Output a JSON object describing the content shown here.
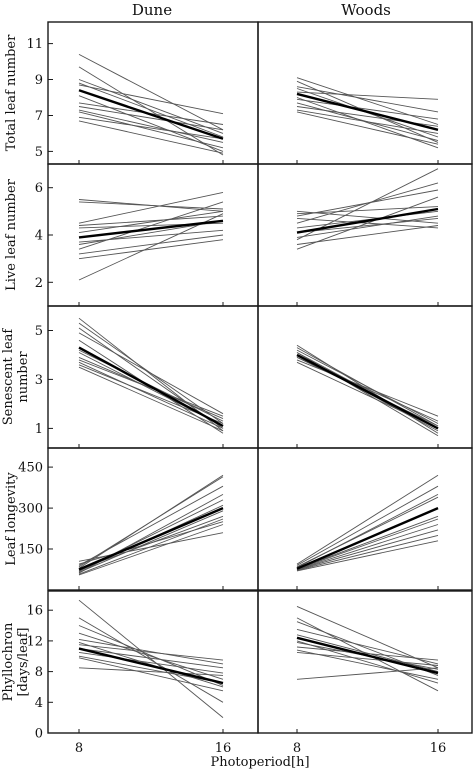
{
  "chart_data": {
    "type": "line",
    "x_title": "Photoperiod[h]",
    "x_ticks": [
      "8",
      "16"
    ],
    "columns": [
      "Dune",
      "Woods"
    ],
    "rows": [
      {
        "ylabel": [
          "Total leaf number"
        ],
        "ylim": [
          4.3,
          12.2
        ],
        "yticks": [
          5,
          7,
          9,
          11
        ],
        "panels": [
          {
            "mean": [
              8.4,
              5.7
            ],
            "individuals": [
              [
                10.4,
                6.2
              ],
              [
                9.7,
                4.8
              ],
              [
                9.0,
                6.0
              ],
              [
                8.8,
                5.8
              ],
              [
                8.7,
                7.1
              ],
              [
                8.1,
                5.0
              ],
              [
                7.7,
                6.5
              ],
              [
                7.5,
                6.2
              ],
              [
                7.3,
                5.5
              ],
              [
                7.2,
                5.2
              ],
              [
                6.7,
                4.9
              ],
              [
                6.9,
                5.7
              ]
            ]
          },
          {
            "mean": [
              8.2,
              6.2
            ],
            "individuals": [
              [
                9.1,
                6.5
              ],
              [
                8.9,
                5.5
              ],
              [
                8.5,
                5.8
              ],
              [
                8.3,
                7.9
              ],
              [
                8.0,
                5.2
              ],
              [
                7.9,
                6.8
              ],
              [
                7.7,
                5.6
              ],
              [
                7.5,
                6.4
              ],
              [
                7.3,
                6.0
              ],
              [
                7.2,
                5.4
              ],
              [
                8.6,
                7.2
              ]
            ]
          }
        ]
      },
      {
        "ylabel": [
          "Live leaf number"
        ],
        "ylim": [
          1.0,
          7.0
        ],
        "yticks": [
          2,
          4,
          6
        ],
        "panels": [
          {
            "mean": [
              3.9,
              4.6
            ],
            "individuals": [
              [
                5.5,
                5.0
              ],
              [
                5.4,
                5.1
              ],
              [
                4.5,
                5.8
              ],
              [
                4.4,
                4.8
              ],
              [
                4.3,
                4.5
              ],
              [
                4.1,
                5.0
              ],
              [
                3.7,
                4.2
              ],
              [
                3.6,
                4.6
              ],
              [
                3.4,
                5.4
              ],
              [
                3.2,
                4.0
              ],
              [
                3.0,
                3.8
              ],
              [
                2.1,
                4.9
              ]
            ]
          },
          {
            "mean": [
              4.1,
              5.1
            ],
            "individuals": [
              [
                5.0,
                4.5
              ],
              [
                4.9,
                5.2
              ],
              [
                4.7,
                4.3
              ],
              [
                4.5,
                6.2
              ],
              [
                4.3,
                5.0
              ],
              [
                4.1,
                4.7
              ],
              [
                3.9,
                4.8
              ],
              [
                3.8,
                6.8
              ],
              [
                3.6,
                4.4
              ],
              [
                3.4,
                5.6
              ],
              [
                4.8,
                5.9
              ]
            ]
          }
        ]
      },
      {
        "ylabel": [
          "Senescent leaf",
          "number"
        ],
        "ylim": [
          0.2,
          6.0
        ],
        "yticks": [
          1,
          3,
          5
        ],
        "panels": [
          {
            "mean": [
              4.3,
              1.1
            ],
            "individuals": [
              [
                5.5,
                0.9
              ],
              [
                5.3,
                1.2
              ],
              [
                5.1,
                1.0
              ],
              [
                4.9,
                1.6
              ],
              [
                4.6,
                0.8
              ],
              [
                4.2,
                1.3
              ],
              [
                4.1,
                1.1
              ],
              [
                3.8,
                1.5
              ],
              [
                3.7,
                1.0
              ],
              [
                3.5,
                0.9
              ],
              [
                3.9,
                1.4
              ],
              [
                3.6,
                1.2
              ]
            ]
          },
          {
            "mean": [
              4.0,
              1.0
            ],
            "individuals": [
              [
                4.4,
                0.8
              ],
              [
                4.3,
                1.1
              ],
              [
                4.2,
                1.2
              ],
              [
                4.1,
                1.0
              ],
              [
                4.0,
                0.9
              ],
              [
                3.9,
                1.3
              ],
              [
                3.8,
                1.5
              ],
              [
                4.1,
                0.7
              ],
              [
                3.9,
                1.1
              ],
              [
                3.7,
                1.0
              ]
            ]
          }
        ]
      },
      {
        "ylabel": [
          "Leaf longevity"
        ],
        "ylim": [
          0,
          520
        ],
        "yticks": [
          150,
          300,
          450
        ],
        "panels": [
          {
            "mean": [
              75,
              300
            ],
            "individuals": [
              [
                105,
                210
              ],
              [
                95,
                250
              ],
              [
                90,
                380
              ],
              [
                85,
                415
              ],
              [
                80,
                420
              ],
              [
                75,
                270
              ],
              [
                70,
                330
              ],
              [
                65,
                290
              ],
              [
                62,
                350
              ],
              [
                58,
                260
              ],
              [
                55,
                240
              ],
              [
                68,
                310
              ]
            ]
          },
          {
            "mean": [
              78,
              300
            ],
            "individuals": [
              [
                95,
                420
              ],
              [
                90,
                380
              ],
              [
                85,
                340
              ],
              [
                80,
                300
              ],
              [
                78,
                270
              ],
              [
                75,
                240
              ],
              [
                72,
                200
              ],
              [
                70,
                180
              ],
              [
                82,
                350
              ],
              [
                76,
                260
              ],
              [
                74,
                220
              ]
            ]
          }
        ]
      },
      {
        "ylabel": [
          "Phyllochron",
          "[days/leaf]"
        ],
        "ylim": [
          0,
          18.5
        ],
        "yticks": [
          0,
          4,
          8,
          12,
          16
        ],
        "panels": [
          {
            "mean": [
              11.0,
              6.5
            ],
            "individuals": [
              [
                17.3,
                2.0
              ],
              [
                15.0,
                4.0
              ],
              [
                14.0,
                6.2
              ],
              [
                13.0,
                7.0
              ],
              [
                12.2,
                9.0
              ],
              [
                11.5,
                9.5
              ],
              [
                11.0,
                8.5
              ],
              [
                10.5,
                7.8
              ],
              [
                10.0,
                6.5
              ],
              [
                9.8,
                5.5
              ],
              [
                8.5,
                7.5
              ],
              [
                11.8,
                6.0
              ]
            ]
          },
          {
            "mean": [
              12.4,
              7.8
            ],
            "individuals": [
              [
                16.5,
                8.5
              ],
              [
                15.0,
                5.5
              ],
              [
                14.5,
                7.5
              ],
              [
                13.5,
                9.0
              ],
              [
                12.8,
                8.0
              ],
              [
                12.0,
                6.5
              ],
              [
                11.8,
                8.3
              ],
              [
                11.2,
                9.5
              ],
              [
                10.8,
                7.0
              ],
              [
                7.0,
                8.5
              ],
              [
                10.5,
                8.8
              ]
            ]
          }
        ]
      }
    ]
  }
}
